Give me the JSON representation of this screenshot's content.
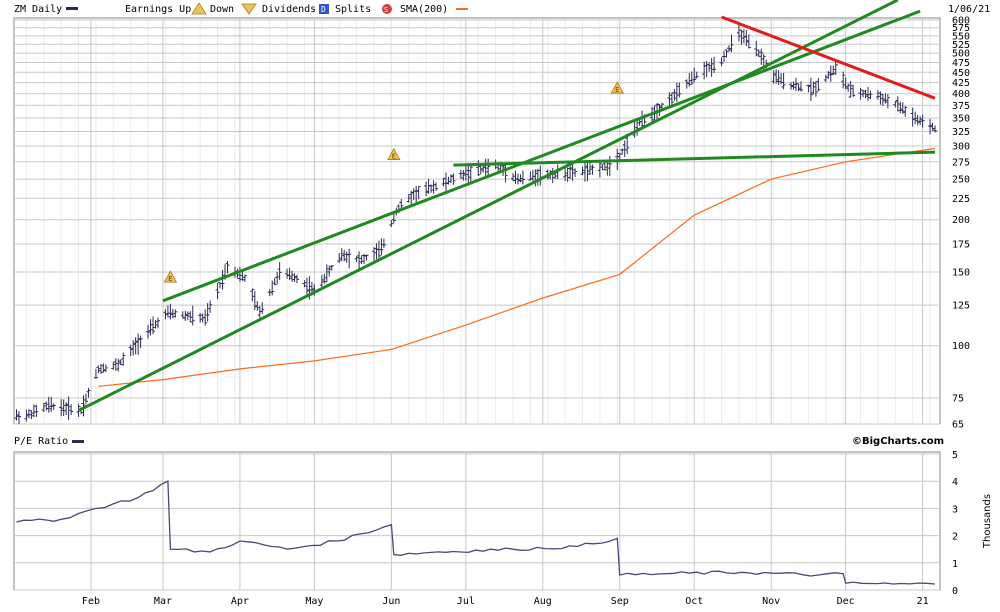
{
  "header": {
    "symbol_label": "ZM Daily",
    "earnings_up_label": "Earnings Up",
    "down_label": "Down",
    "dividends_label": "Dividends",
    "splits_label": "Splits",
    "sma_label": "SMA(200)",
    "date": "1/06/21"
  },
  "lower_panel": {
    "title": "P/E Ratio",
    "brand": "©BigCharts.com",
    "unit_label": "Thousands"
  },
  "colors": {
    "price_bar": "#2a2a55",
    "sma": "#ff6a1a",
    "trend_green": "#1f8a1f",
    "trend_red": "#e01e1e",
    "grid": "#c8c8c8",
    "pe_line": "#4a4a78",
    "earnings_marker": "#d4a020",
    "dividends_marker": "#3355cc",
    "splits_marker": "#d04040"
  },
  "chart_data": [
    {
      "type": "line",
      "title": "ZM Daily",
      "scale": "log",
      "x_ticks": [
        "Feb",
        "Mar",
        "Apr",
        "May",
        "Jun",
        "Jul",
        "Aug",
        "Sep",
        "Oct",
        "Nov",
        "Dec",
        "21"
      ],
      "y_ticks": [
        65,
        75,
        100,
        125,
        150,
        175,
        200,
        225,
        250,
        275,
        300,
        325,
        350,
        375,
        400,
        425,
        450,
        475,
        500,
        525,
        550,
        575,
        600
      ],
      "ylim": [
        65,
        600
      ],
      "grid": true,
      "series": [
        {
          "name": "ZM Daily",
          "style": "ohlc-bars",
          "x": [
            "2020-01-06",
            "2020-01-15",
            "2020-01-28",
            "2020-02-04",
            "2020-02-12",
            "2020-02-24",
            "2020-03-03",
            "2020-03-10",
            "2020-03-18",
            "2020-03-23",
            "2020-03-27",
            "2020-04-03",
            "2020-04-09",
            "2020-04-17",
            "2020-04-24",
            "2020-05-01",
            "2020-05-12",
            "2020-05-20",
            "2020-05-28",
            "2020-06-03",
            "2020-06-10",
            "2020-06-22",
            "2020-07-01",
            "2020-07-13",
            "2020-07-22",
            "2020-07-30",
            "2020-08-10",
            "2020-08-20",
            "2020-08-28",
            "2020-09-01",
            "2020-09-09",
            "2020-09-21",
            "2020-10-01",
            "2020-10-12",
            "2020-10-19",
            "2020-10-27",
            "2020-11-02",
            "2020-11-09",
            "2020-11-18",
            "2020-11-27",
            "2020-12-03",
            "2020-12-14",
            "2020-12-22",
            "2020-12-30",
            "2021-01-06"
          ],
          "values": [
            68,
            72,
            70,
            88,
            90,
            108,
            120,
            118,
            116,
            135,
            155,
            145,
            120,
            150,
            145,
            135,
            165,
            160,
            170,
            210,
            230,
            245,
            258,
            270,
            250,
            255,
            258,
            262,
            270,
            285,
            340,
            385,
            440,
            480,
            560,
            500,
            440,
            420,
            410,
            460,
            405,
            395,
            375,
            345,
            330
          ]
        },
        {
          "name": "SMA(200)",
          "x": [
            "2020-02-04",
            "2020-03-01",
            "2020-04-01",
            "2020-05-01",
            "2020-06-01",
            "2020-07-01",
            "2020-08-01",
            "2020-09-01",
            "2020-10-01",
            "2020-11-01",
            "2020-12-01",
            "2021-01-06"
          ],
          "values": [
            80,
            83,
            88,
            92,
            98,
            112,
            130,
            148,
            205,
            250,
            275,
            296
          ]
        }
      ],
      "trendlines": [
        {
          "color": "green",
          "from": [
            "2020-01-27",
            70
          ],
          "to": [
            "2020-12-22",
            670
          ]
        },
        {
          "color": "green",
          "from": [
            "2020-03-01",
            128
          ],
          "to": [
            "2020-12-31",
            630
          ]
        },
        {
          "color": "green",
          "from": [
            "2020-06-26",
            270
          ],
          "to": [
            "2021-01-06",
            290
          ]
        },
        {
          "color": "red",
          "from": [
            "2020-10-12",
            610
          ],
          "to": [
            "2021-01-06",
            390
          ]
        }
      ],
      "events": [
        {
          "type": "earnings",
          "label": "E",
          "date": "2020-03-04",
          "value": 135
        },
        {
          "type": "earnings",
          "label": "E",
          "date": "2020-06-02",
          "value": 265
        },
        {
          "type": "earnings",
          "label": "E",
          "date": "2020-08-31",
          "value": 382
        }
      ]
    },
    {
      "type": "line",
      "title": "P/E Ratio",
      "ylabel": "Thousands",
      "y_ticks": [
        0,
        1,
        2,
        3,
        4,
        5
      ],
      "ylim": [
        0,
        5
      ],
      "grid": true,
      "series": [
        {
          "name": "P/E Ratio",
          "x": [
            "2020-01-02",
            "2020-01-20",
            "2020-02-03",
            "2020-02-20",
            "2020-03-03",
            "2020-03-04",
            "2020-03-20",
            "2020-04-01",
            "2020-04-20",
            "2020-05-10",
            "2020-06-01",
            "2020-06-02",
            "2020-06-20",
            "2020-07-20",
            "2020-08-15",
            "2020-08-31",
            "2020-09-01",
            "2020-09-20",
            "2020-10-20",
            "2020-11-20",
            "2020-11-30",
            "2020-12-01",
            "2020-12-20",
            "2021-01-06"
          ],
          "values": [
            2.5,
            2.6,
            3.0,
            3.4,
            4.0,
            1.5,
            1.4,
            1.8,
            1.5,
            1.8,
            2.4,
            1.3,
            1.4,
            1.5,
            1.6,
            1.9,
            0.55,
            0.6,
            0.65,
            0.55,
            0.6,
            0.25,
            0.22,
            0.22
          ]
        }
      ]
    }
  ]
}
